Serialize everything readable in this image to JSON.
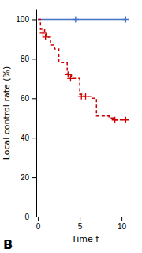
{
  "chart_data": {
    "type": "line",
    "xlabel": "Time f",
    "ylabel": "Local control rate (%)",
    "annotations": [
      "B"
    ],
    "xlim": [
      -0.2,
      11.5
    ],
    "ylim": [
      0,
      105
    ],
    "xticks": [
      0,
      5,
      10
    ],
    "yticks": [
      0,
      20,
      40,
      60,
      80,
      100
    ],
    "series": [
      {
        "type": "line",
        "color": "#4472C4",
        "line_style": "solid",
        "x": [
          0,
          10.5
        ],
        "values": [
          100,
          100
        ]
      },
      {
        "type": "scatter",
        "color": "#4472C4",
        "marker": "plus",
        "x": [
          4.5,
          10.5
        ],
        "values": [
          100,
          100
        ]
      },
      {
        "type": "line",
        "color": "#CC0000",
        "line_style": "dashed",
        "x": [
          0,
          0.3,
          0.3,
          0.8,
          0.8,
          1.0,
          1.0,
          1.5,
          1.5,
          2.0,
          2.0,
          2.5,
          2.5,
          3.5,
          3.5,
          4.0,
          4.0,
          5.0,
          5.0,
          5.5,
          5.5,
          6.5,
          6.5,
          7.0,
          7.0,
          8.5,
          8.5,
          9.0,
          9.0,
          10.5
        ],
        "values": [
          100,
          100,
          95,
          95,
          93,
          93,
          91,
          91,
          87,
          87,
          85,
          85,
          78,
          78,
          72,
          72,
          70,
          70,
          62,
          62,
          61,
          61,
          60,
          60,
          51,
          51,
          50,
          50,
          49,
          49
        ]
      },
      {
        "type": "scatter",
        "color": "#CC0000",
        "marker": "plus",
        "x": [
          0.6,
          0.9,
          3.6,
          3.9,
          5.2,
          5.7,
          9.2,
          10.5
        ],
        "values": [
          93,
          91,
          72,
          70,
          61,
          61,
          49,
          49
        ]
      }
    ]
  }
}
